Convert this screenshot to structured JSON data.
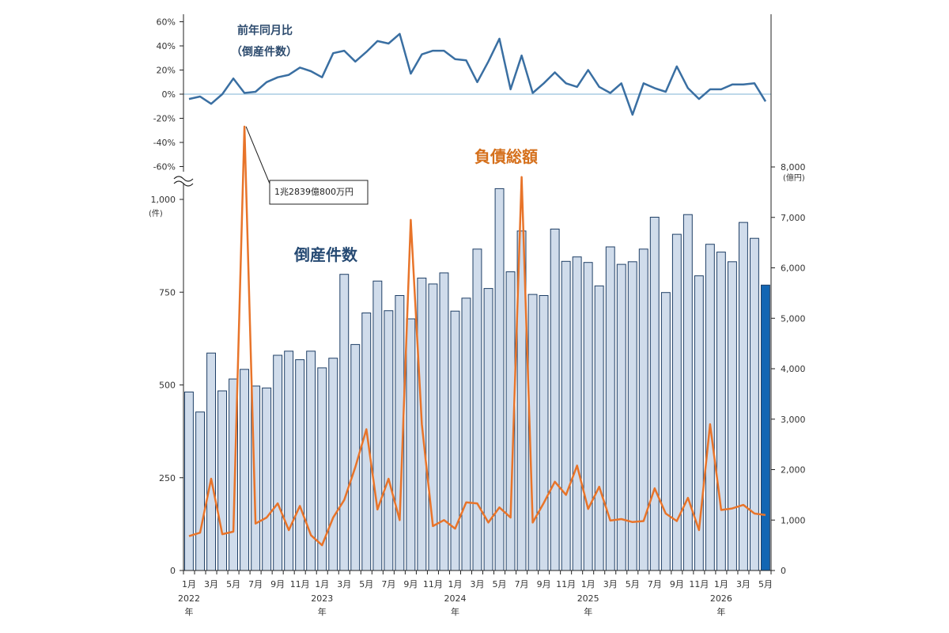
{
  "colors": {
    "bar_fill": "#d0dceb",
    "bar_stroke": "#1f3f66",
    "bar_last_fill": "#1366b3",
    "debt_line": "#e8742a",
    "yoy_line": "#3a6fa2",
    "zero_line": "#a9cbe3",
    "axis": "#222222",
    "debt_label": "#d5701c",
    "count_label": "#264a73",
    "yoy_label": "#2c4a6d"
  },
  "labels": {
    "yoy_title_1": "前年同月比",
    "yoy_title_2": "（倒産件数）",
    "count_label": "倒産件数",
    "debt_label": "負債総額",
    "left_unit": "(件)",
    "right_unit": "(億円)",
    "callout": "1兆2839億800万円"
  },
  "chart_data": {
    "type": "bar",
    "x": [
      "1月",
      "2月",
      "3月",
      "4月",
      "5月",
      "6月",
      "7月",
      "8月",
      "9月",
      "10月",
      "11月",
      "12月",
      "1月",
      "2月",
      "3月",
      "4月",
      "5月",
      "6月",
      "7月",
      "8月",
      "9月",
      "10月",
      "11月",
      "12月",
      "1月",
      "2月",
      "3月",
      "4月",
      "5月",
      "6月",
      "7月",
      "8月",
      "9月",
      "10月",
      "11月",
      "12月",
      "1月",
      "2月",
      "3月",
      "4月",
      "5月",
      "6月",
      "7月",
      "8月",
      "9月",
      "10月",
      "11月",
      "12月",
      "1月",
      "2月",
      "3月",
      "4月",
      "5月"
    ],
    "x_tick_labels": [
      "1月",
      "",
      "3月",
      "",
      "5月",
      "",
      "7月",
      "",
      "9月",
      "",
      "11月",
      "",
      "1月",
      "",
      "3月",
      "",
      "5月",
      "",
      "7月",
      "",
      "9月",
      "",
      "11月",
      "",
      "1月",
      "",
      "3月",
      "",
      "5月",
      "",
      "7月",
      "",
      "9月",
      "",
      "11月",
      "",
      "1月",
      "",
      "3月",
      "",
      "5月",
      "",
      "7月",
      "",
      "9月",
      "",
      "11月",
      "",
      "1月",
      "",
      "3月",
      "",
      "5月"
    ],
    "year_labels": [
      {
        "index": 0,
        "year": "2022",
        "suffix": "年"
      },
      {
        "index": 12,
        "year": "2023",
        "suffix": "年"
      },
      {
        "index": 24,
        "year": "2024",
        "suffix": "年"
      },
      {
        "index": 36,
        "year": "2025",
        "suffix": "年"
      },
      {
        "index": 48,
        "year": "2026",
        "suffix": "年"
      }
    ],
    "series": [
      {
        "name": "倒産件数",
        "kind": "bar",
        "axis": "left",
        "values": [
          481,
          427,
          586,
          484,
          516,
          542,
          497,
          492,
          580,
          591,
          568,
          591,
          546,
          572,
          798,
          609,
          694,
          780,
          700,
          741,
          678,
          788,
          772,
          802,
          699,
          734,
          866,
          760,
          1029,
          805,
          915,
          744,
          741,
          920,
          833,
          845,
          830,
          767,
          872,
          825,
          832,
          866,
          952,
          749,
          906,
          959,
          794,
          879,
          858,
          832,
          938,
          895,
          769
        ]
      },
      {
        "name": "負債総額",
        "kind": "line",
        "axis": "right",
        "values": [
          680,
          750,
          1820,
          720,
          770,
          12839,
          930,
          1050,
          1330,
          800,
          1280,
          700,
          500,
          1050,
          1400,
          2050,
          2800,
          1210,
          1820,
          1000,
          6950,
          2900,
          880,
          1000,
          830,
          1350,
          1330,
          950,
          1250,
          1050,
          7800,
          950,
          1340,
          1760,
          1500,
          2080,
          1220,
          1660,
          990,
          1020,
          960,
          980,
          1630,
          1130,
          980,
          1440,
          800,
          2900,
          1200,
          1230,
          1300,
          1130,
          1100
        ]
      },
      {
        "name": "前年同月比（倒産件数）",
        "kind": "line",
        "axis": "top",
        "values": [
          -4,
          -2,
          -8,
          0,
          13,
          1,
          2,
          10,
          14,
          16,
          22,
          19,
          14,
          34,
          36,
          27,
          35,
          44,
          42,
          50,
          17,
          33,
          36,
          36,
          29,
          28,
          10,
          27,
          46,
          4,
          32,
          1,
          9,
          18,
          9,
          6,
          20,
          6,
          1,
          9,
          -17,
          9,
          5,
          2,
          23,
          5,
          -4,
          4,
          4,
          8,
          8,
          9,
          -6
        ]
      }
    ],
    "left_axis": {
      "ticks": [
        0,
        250,
        500,
        750,
        1000
      ],
      "tick_labels": [
        "0",
        "250",
        "500",
        "750",
        "1,000"
      ],
      "range": [
        0,
        1000
      ]
    },
    "right_axis": {
      "ticks": [
        0,
        1000,
        2000,
        3000,
        4000,
        5000,
        6000,
        7000,
        8000
      ],
      "tick_labels": [
        "0",
        "1,000",
        "2,000",
        "3,000",
        "4,000",
        "5,000",
        "6,000",
        "7,000",
        "8,000"
      ],
      "range": [
        0,
        8000
      ]
    },
    "top_axis": {
      "ticks": [
        60,
        40,
        20,
        0,
        -20,
        -40,
        -60
      ],
      "tick_labels": [
        "60%",
        "40%",
        "20%",
        "0%",
        "-20%",
        "-40%",
        "-60%"
      ],
      "range": [
        -60,
        60
      ]
    },
    "callout_index": 5
  }
}
